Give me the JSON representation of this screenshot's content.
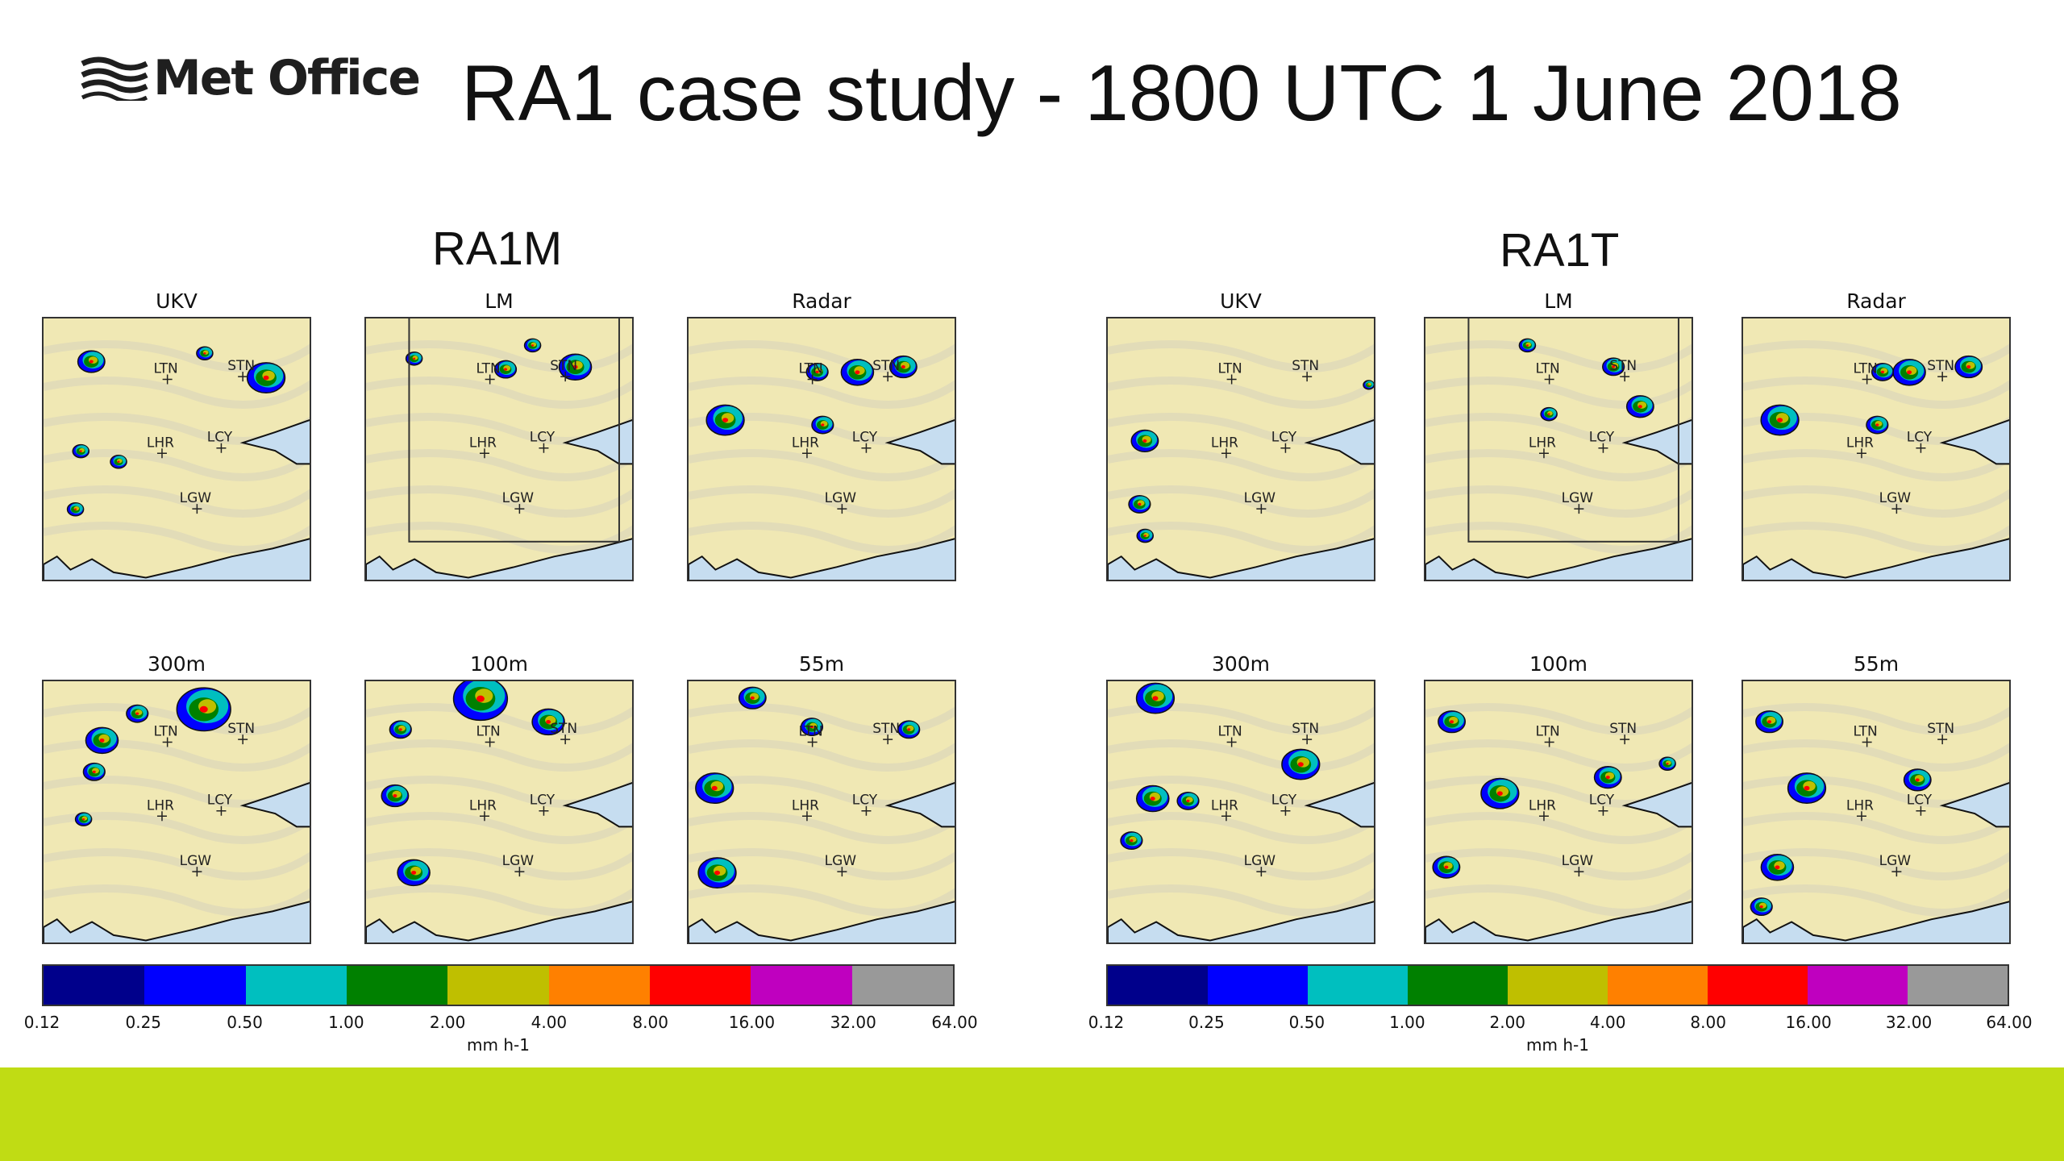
{
  "header": {
    "logo_text": "Met Office",
    "title": "RA1 case study - 1800 UTC 1 June 2018"
  },
  "colors": {
    "land": "#f0e8b4",
    "sea": "#c6ddf0",
    "footer": "#c0dc14"
  },
  "stations": [
    "LTN",
    "STN",
    "LHR",
    "LCY",
    "LGW"
  ],
  "groups": [
    {
      "title": "RA1M",
      "panels": [
        {
          "label": "UKV",
          "inner_domain_box": false
        },
        {
          "label": "LM",
          "inner_domain_box": true
        },
        {
          "label": "Radar",
          "inner_domain_box": false
        },
        {
          "label": "300m",
          "inner_domain_box": false
        },
        {
          "label": "100m",
          "inner_domain_box": false
        },
        {
          "label": "55m",
          "inner_domain_box": false
        }
      ]
    },
    {
      "title": "RA1T",
      "panels": [
        {
          "label": "UKV",
          "inner_domain_box": false
        },
        {
          "label": "LM",
          "inner_domain_box": true
        },
        {
          "label": "Radar",
          "inner_domain_box": false
        },
        {
          "label": "300m",
          "inner_domain_box": false
        },
        {
          "label": "100m",
          "inner_domain_box": false
        },
        {
          "label": "55m",
          "inner_domain_box": false
        }
      ]
    }
  ],
  "colorbar": {
    "unit": "mm h-1",
    "ticks": [
      "0.12",
      "0.25",
      "0.50",
      "1.00",
      "2.00",
      "4.00",
      "8.00",
      "16.00",
      "32.00",
      "64.00"
    ],
    "colors": [
      "#00008b",
      "#0000ff",
      "#00bfbf",
      "#008000",
      "#bfbf00",
      "#ff8000",
      "#ff0000",
      "#bf00bf",
      "#999999"
    ]
  }
}
